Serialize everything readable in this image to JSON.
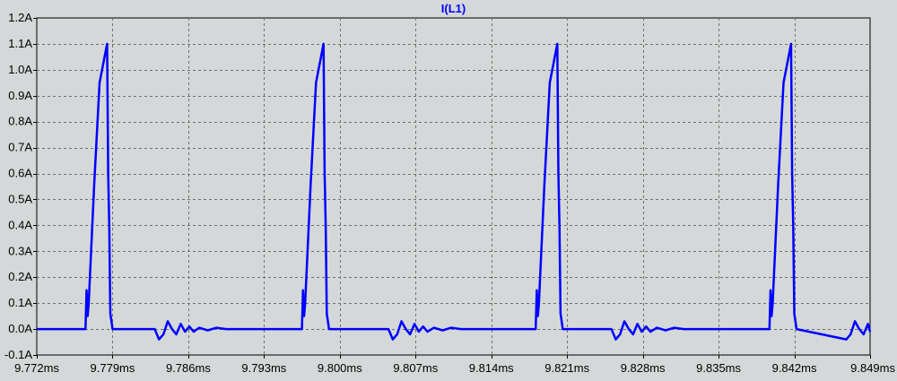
{
  "colors": {
    "background": "#d4d8d8",
    "plot_background": "#d4d8d8",
    "trace": "#0000ff",
    "grid": "#707070",
    "frame": "#000000",
    "text": "#000000",
    "title": "#0000ff"
  },
  "chart_data": {
    "type": "line",
    "title": "I(L1)",
    "xlabel": "",
    "ylabel": "",
    "grid": true,
    "grid_style": "dashed",
    "xlim": [
      9.772,
      9.849
    ],
    "ylim": [
      -0.1,
      1.2
    ],
    "x_ticks": [
      "9.772ms",
      "9.779ms",
      "9.786ms",
      "9.793ms",
      "9.800ms",
      "9.807ms",
      "9.814ms",
      "9.821ms",
      "9.828ms",
      "9.835ms",
      "9.842ms",
      "9.849ms"
    ],
    "y_ticks": [
      "-0.1A",
      "0.0A",
      "0.1A",
      "0.2A",
      "0.3A",
      "0.4A",
      "0.5A",
      "0.6A",
      "0.7A",
      "0.8A",
      "0.9A",
      "1.0A",
      "1.1A",
      "1.2A"
    ],
    "x_tick_values": [
      9.772,
      9.779,
      9.786,
      9.793,
      9.8,
      9.807,
      9.814,
      9.821,
      9.828,
      9.835,
      9.842,
      9.849
    ],
    "y_tick_values": [
      -0.1,
      0.0,
      0.1,
      0.2,
      0.3,
      0.4,
      0.5,
      0.6,
      0.7,
      0.8,
      0.9,
      1.0,
      1.1,
      1.2
    ],
    "series": [
      {
        "name": "I(L1)",
        "x": [
          9.772,
          9.7765,
          9.7766,
          9.7767,
          9.7768,
          9.7773,
          9.7778,
          9.7785,
          9.7786,
          9.7787,
          9.7788,
          9.779,
          9.7797,
          9.7829,
          9.7833,
          9.7837,
          9.7841,
          9.7845,
          9.7849,
          9.7853,
          9.7857,
          9.7861,
          9.7865,
          9.787,
          9.7878,
          9.7886,
          9.7895,
          9.7921,
          9.7965,
          9.7966,
          9.7967,
          9.7968,
          9.7973,
          9.7978,
          9.7985,
          9.7986,
          9.7987,
          9.7988,
          9.799,
          9.8045,
          9.8049,
          9.8053,
          9.8057,
          9.8061,
          9.8065,
          9.8069,
          9.8073,
          9.8077,
          9.8081,
          9.8087,
          9.8095,
          9.8103,
          9.8112,
          9.8181,
          9.8182,
          9.8183,
          9.8184,
          9.8189,
          9.8194,
          9.8201,
          9.8202,
          9.8203,
          9.8204,
          9.8206,
          9.8251,
          9.8255,
          9.8259,
          9.8263,
          9.8267,
          9.8271,
          9.8275,
          9.8279,
          9.8283,
          9.8287,
          9.8293,
          9.8301,
          9.8309,
          9.8318,
          9.8392,
          9.8397,
          9.8398,
          9.8399,
          9.84,
          9.8405,
          9.841,
          9.8417,
          9.8418,
          9.8419,
          9.842,
          9.8422,
          9.8468,
          9.8472,
          9.8476,
          9.848,
          9.8484,
          9.8488,
          9.849
        ],
        "y": [
          0.0,
          0.0,
          0.15,
          0.05,
          0.1,
          0.55,
          0.95,
          1.1,
          0.6,
          0.4,
          0.06,
          0.0,
          0.0,
          0.0,
          -0.04,
          -0.02,
          0.03,
          0.0,
          -0.02,
          0.02,
          -0.01,
          0.01,
          -0.01,
          0.005,
          -0.005,
          0.005,
          0.0,
          0.0,
          0.0,
          0.15,
          0.05,
          0.1,
          0.55,
          0.95,
          1.1,
          0.6,
          0.4,
          0.06,
          0.0,
          0.0,
          -0.04,
          -0.02,
          0.03,
          0.0,
          -0.02,
          0.02,
          -0.01,
          0.01,
          -0.01,
          0.005,
          -0.005,
          0.005,
          0.0,
          0.0,
          0.15,
          0.05,
          0.1,
          0.55,
          0.95,
          1.1,
          0.6,
          0.4,
          0.06,
          0.0,
          0.0,
          -0.04,
          -0.02,
          0.03,
          0.0,
          -0.02,
          0.02,
          -0.01,
          0.01,
          -0.01,
          0.005,
          -0.005,
          0.005,
          0.0,
          0.0,
          0.0,
          0.15,
          0.05,
          0.1,
          0.55,
          0.95,
          1.1,
          0.6,
          0.4,
          0.06,
          0.0,
          -0.04,
          -0.02,
          0.03,
          0.0,
          -0.02,
          0.02,
          -0.01
        ]
      }
    ]
  }
}
